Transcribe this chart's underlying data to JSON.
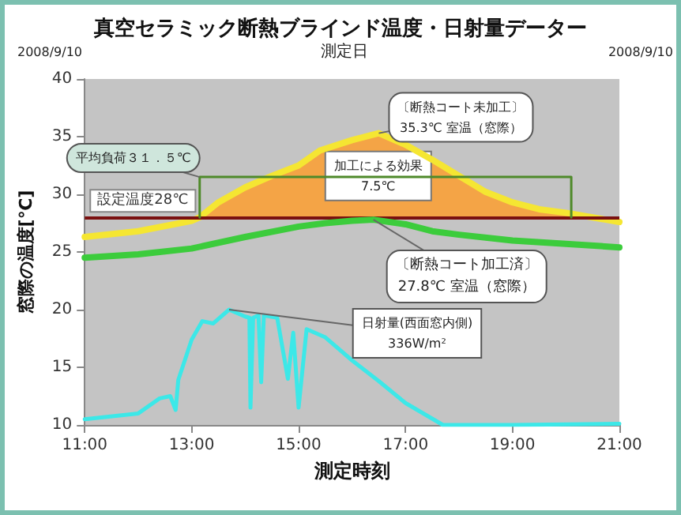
{
  "chart_data": {
    "type": "line",
    "title": "真空セラミック断熱ブラインド温度・日射量データー",
    "xlabel": "測定時刻",
    "ylabel": "窓際の温度[℃]",
    "xlim": [
      11,
      21
    ],
    "xticks": [
      {
        "value": 11,
        "label": "11:00"
      },
      {
        "value": 13,
        "label": "13:00"
      },
      {
        "value": 15,
        "label": "15:00"
      },
      {
        "value": 17,
        "label": "17:00"
      },
      {
        "value": 19,
        "label": "19:00"
      },
      {
        "value": 21,
        "label": "21:00"
      }
    ],
    "ylim": [
      10,
      40
    ],
    "yticks": [
      10,
      15,
      20,
      25,
      30,
      35,
      40
    ],
    "grid": false,
    "marker": "none",
    "line_style": "solid",
    "series": [
      {
        "type": "area",
        "color": "#f4a446",
        "x": [
          13.15,
          13.5,
          14,
          14.5,
          15,
          15.4,
          16,
          16.5,
          17,
          17.5,
          18,
          18.5,
          19,
          19.5,
          20,
          20.5
        ],
        "values": [
          28.0,
          29.3,
          30.6,
          31.6,
          32.5,
          33.8,
          34.7,
          35.3,
          34.3,
          33.0,
          31.6,
          30.2,
          29.3,
          28.7,
          28.4,
          28.0
        ]
      },
      {
        "color": "#f5e632",
        "x": [
          11,
          12,
          13,
          13.15,
          13.5,
          14,
          14.5,
          15,
          15.4,
          16,
          16.5,
          17,
          17.5,
          18,
          18.5,
          19,
          19.5,
          20,
          20.5,
          21
        ],
        "values": [
          26.3,
          26.8,
          27.7,
          28.0,
          29.3,
          30.6,
          31.6,
          32.5,
          33.8,
          34.7,
          35.3,
          34.3,
          33.0,
          31.6,
          30.2,
          29.3,
          28.7,
          28.4,
          28.0,
          27.6
        ]
      },
      {
        "color": "#3ccc3c",
        "x": [
          11,
          12,
          13,
          14,
          15,
          15.5,
          16,
          16.4,
          17,
          17.5,
          18,
          19,
          20,
          21
        ],
        "values": [
          24.5,
          24.8,
          25.3,
          26.3,
          27.2,
          27.5,
          27.7,
          27.8,
          27.4,
          26.8,
          26.5,
          26.0,
          25.7,
          25.4
        ]
      },
      {
        "color": "#3ce8e8",
        "x": [
          11,
          12,
          12.4,
          12.6,
          12.7,
          12.75,
          13,
          13.2,
          13.4,
          13.7,
          14,
          14.08,
          14.1,
          14.15,
          14.25,
          14.3,
          14.35,
          14.6,
          14.8,
          14.9,
          15.0,
          15.15,
          15.5,
          16,
          16.5,
          17,
          17.7,
          19,
          21
        ],
        "values": [
          10.5,
          11.0,
          12.3,
          12.5,
          11.3,
          13.9,
          17.4,
          19.0,
          18.8,
          20.0,
          19.4,
          19.3,
          11.5,
          19.3,
          19.5,
          13.7,
          19.5,
          19.3,
          14.0,
          18.0,
          11.5,
          18.3,
          17.6,
          15.6,
          13.8,
          11.9,
          10.0,
          10.0,
          10.1
        ]
      },
      {
        "color": "#4e8a2a",
        "x": [
          13.15,
          13.15,
          20.1,
          20.1
        ],
        "values": [
          28.0,
          31.5,
          31.5,
          28.0
        ]
      }
    ],
    "ref_lines": [
      {
        "axis": "y",
        "value": 28,
        "label": "設定温度28℃",
        "color": "#7a1010"
      }
    ],
    "annotations": [
      {
        "text": "〔断熱コート未加工〕\n35.3℃ 室温（窓際）",
        "x": 16.5,
        "y": 35.3
      },
      {
        "text": "〔断熱コート加工済〕\n27.8℃ 室温（窓際）",
        "x": 16.4,
        "y": 27.8
      },
      {
        "text": "日射量(西面窓内側)\n336W/m²",
        "x": 13.7,
        "y": 20.0
      },
      {
        "text": "加工による効果\n7.5℃",
        "x": 16.49,
        "y": 32.0
      },
      {
        "text": "平均負荷３１．５℃",
        "x": 13.15,
        "y": 31.5
      },
      "2008/9/10",
      "測定日",
      "2008/9/10"
    ]
  }
}
